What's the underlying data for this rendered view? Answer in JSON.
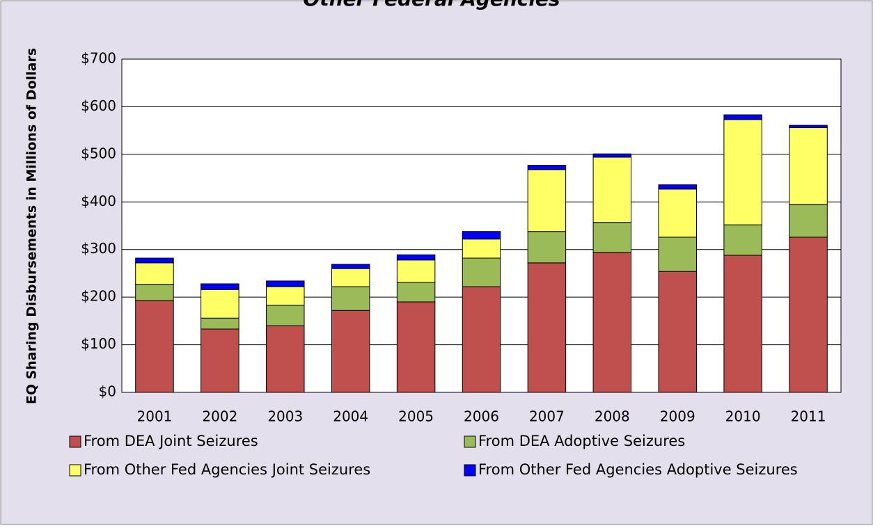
{
  "chart_data": {
    "type": "stacked_bar",
    "title": "Other Federal Agencies",
    "y_label": "EQ Sharing Disbursements in Millions of Dollars",
    "categories": [
      "2001",
      "2002",
      "2003",
      "2004",
      "2005",
      "2006",
      "2007",
      "2008",
      "2009",
      "2010",
      "2011"
    ],
    "series": [
      {
        "name": "From DEA Joint Seizures",
        "color": "#c0504d",
        "values": [
          193,
          133,
          140,
          172,
          190,
          222,
          272,
          294,
          254,
          288,
          326
        ]
      },
      {
        "name": "From DEA Adoptive Seizures",
        "color": "#9bbb59",
        "values": [
          34,
          23,
          43,
          50,
          41,
          60,
          66,
          63,
          72,
          64,
          69
        ]
      },
      {
        "name": "From Other Fed Agencies Joint Seizures",
        "color": "#ffff66",
        "values": [
          45,
          60,
          39,
          38,
          47,
          40,
          130,
          137,
          101,
          221,
          161
        ]
      },
      {
        "name": "From Other Fed Agencies Adoptive Seizures",
        "color": "#0000ff",
        "values": [
          10,
          12,
          12,
          9,
          11,
          16,
          9,
          7,
          9,
          10,
          5
        ]
      }
    ],
    "ylim": [
      0,
      700
    ],
    "yticks": [
      {
        "value": 0,
        "label": "$0"
      },
      {
        "value": 100,
        "label": "$100"
      },
      {
        "value": 200,
        "label": "$200"
      },
      {
        "value": 300,
        "label": "$300"
      },
      {
        "value": 400,
        "label": "$400"
      },
      {
        "value": 500,
        "label": "$500"
      },
      {
        "value": 600,
        "label": "$600"
      },
      {
        "value": 700,
        "label": "$700"
      }
    ],
    "grid": true
  }
}
